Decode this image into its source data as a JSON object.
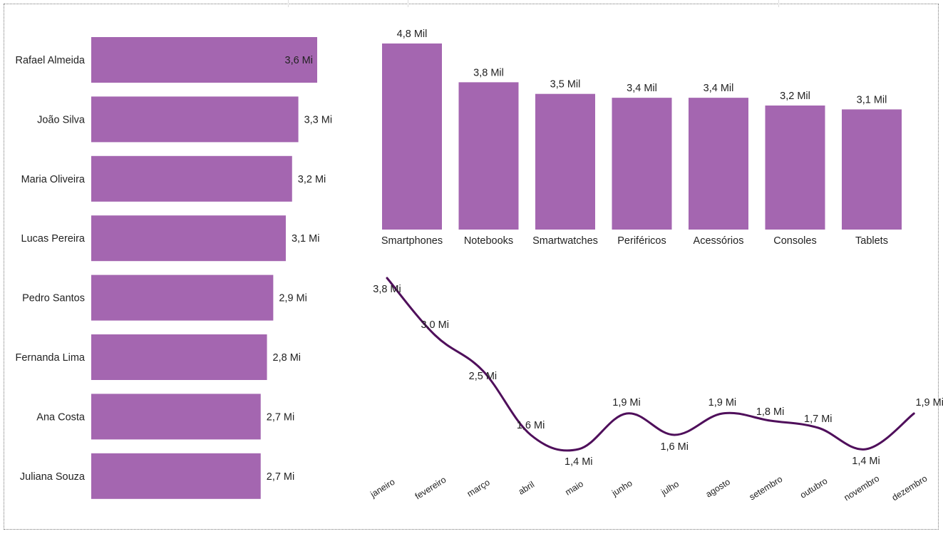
{
  "colors": {
    "bar": "#a466b0",
    "line": "#4f0f5b",
    "text": "#222222"
  },
  "chart_data": [
    {
      "type": "bar",
      "orientation": "horizontal",
      "categories": [
        "Rafael Almeida",
        "João Silva",
        "Maria Oliveira",
        "Lucas Pereira",
        "Pedro Santos",
        "Fernanda Lima",
        "Ana Costa",
        "Juliana Souza"
      ],
      "values": [
        3.6,
        3.3,
        3.2,
        3.1,
        2.9,
        2.8,
        2.7,
        2.7
      ],
      "data_labels": [
        "3,6 Mi",
        "3,3 Mi",
        "3,2 Mi",
        "3,1 Mi",
        "2,9 Mi",
        "2,8 Mi",
        "2,7 Mi",
        "2,7 Mi"
      ],
      "unit": "Mi"
    },
    {
      "type": "bar",
      "orientation": "vertical",
      "categories": [
        "Smartphones",
        "Notebooks",
        "Smartwatches",
        "Periféricos",
        "Acessórios",
        "Consoles",
        "Tablets"
      ],
      "values": [
        4.8,
        3.8,
        3.5,
        3.4,
        3.4,
        3.2,
        3.1
      ],
      "data_labels": [
        "4,8 Mil",
        "3,8 Mil",
        "3,5 Mil",
        "3,4 Mil",
        "3,4 Mil",
        "3,2 Mil",
        "3,1 Mil"
      ],
      "unit": "Mil"
    },
    {
      "type": "line",
      "categories": [
        "janeiro",
        "fevereiro",
        "março",
        "abril",
        "maio",
        "junho",
        "julho",
        "agosto",
        "setembro",
        "outubro",
        "novembro",
        "dezembro"
      ],
      "values": [
        3.8,
        3.0,
        2.5,
        1.6,
        1.4,
        1.9,
        1.6,
        1.9,
        1.8,
        1.7,
        1.4,
        1.9
      ],
      "data_labels": [
        "3,8 Mi",
        "3,0 Mi",
        "2,5 Mi",
        "1,6 Mi",
        "1,4 Mi",
        "1,9 Mi",
        "1,6 Mi",
        "1,9 Mi",
        "1,8 Mi",
        "1,7 Mi",
        "1,4 Mi",
        "1,9 Mi"
      ],
      "unit": "Mi"
    }
  ]
}
